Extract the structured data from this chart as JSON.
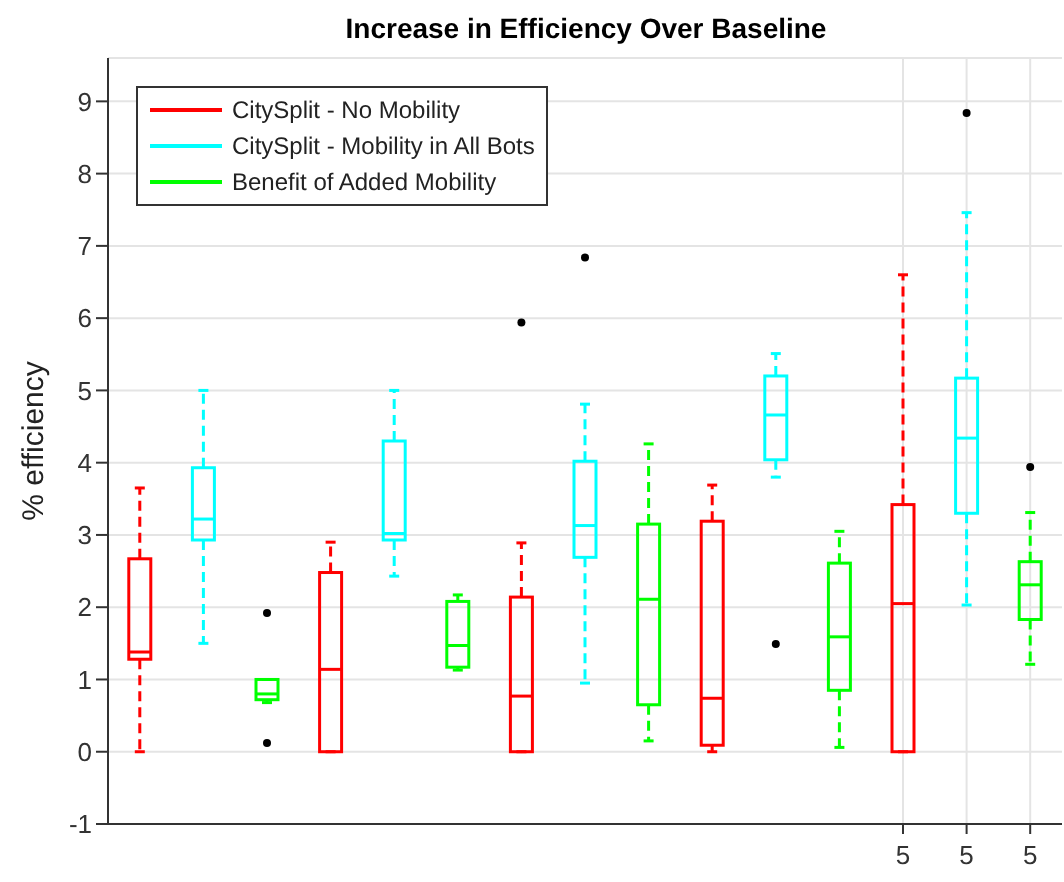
{
  "chart_data": {
    "type": "box",
    "title": "Increase in Efficiency Over Baseline",
    "ylabel": "% efficiency",
    "categories": [
      null,
      null,
      null,
      null,
      null,
      null,
      null,
      null,
      null,
      null,
      null,
      null,
      "5",
      "5",
      "5"
    ],
    "ylim": [
      -1,
      9.6
    ],
    "yticks": [
      -1,
      0,
      1,
      2,
      3,
      4,
      5,
      6,
      7,
      8,
      9
    ],
    "grid": true,
    "legend": "top left",
    "line_style": "dashed",
    "series": [
      {
        "name": "CitySplit - No Mobility",
        "color": "#ff0000",
        "boxes": [
          {
            "low": 0,
            "q1": 1.28,
            "median": 1.38,
            "q3": 2.67,
            "high": 3.65
          },
          null,
          null,
          {
            "low": 0,
            "q1": 0,
            "median": 1.14,
            "q3": 2.48,
            "high": 2.9
          },
          null,
          null,
          {
            "low": 0,
            "q1": 0,
            "median": 0.77,
            "q3": 2.14,
            "high": 2.89,
            "outliers": [
              5.94
            ]
          },
          null,
          null,
          {
            "low": 0,
            "q1": 0.09,
            "median": 0.74,
            "q3": 3.19,
            "high": 3.69
          },
          null,
          null,
          {
            "low": 0,
            "q1": 0,
            "median": 2.05,
            "q3": 3.42,
            "high": 6.6
          },
          null,
          null
        ]
      },
      {
        "name": "CitySplit - Mobility in All Bots",
        "color": "#00ffff",
        "boxes": [
          null,
          {
            "low": 1.5,
            "q1": 2.93,
            "median": 3.22,
            "q3": 3.93,
            "high": 5.0
          },
          null,
          null,
          {
            "low": 2.43,
            "q1": 2.93,
            "median": 3.02,
            "q3": 4.3,
            "high": 5.0
          },
          null,
          null,
          {
            "low": 0.95,
            "q1": 2.69,
            "median": 3.13,
            "q3": 4.02,
            "high": 4.81,
            "outliers": [
              6.84
            ]
          },
          null,
          null,
          {
            "low": 3.8,
            "q1": 4.04,
            "median": 4.66,
            "q3": 5.2,
            "high": 5.51,
            "outliers": [
              1.49
            ]
          },
          null,
          null,
          {
            "low": 2.03,
            "q1": 3.3,
            "median": 4.34,
            "q3": 5.17,
            "high": 7.46,
            "outliers": [
              8.84
            ]
          },
          null
        ]
      },
      {
        "name": "Benefit of Added Mobility",
        "color": "#00ff00",
        "boxes": [
          null,
          null,
          {
            "low": 0.68,
            "q1": 0.72,
            "median": 0.8,
            "q3": 1.0,
            "high": 1.0,
            "outliers": [
              1.92,
              0.12
            ]
          },
          null,
          null,
          {
            "low": 1.13,
            "q1": 1.17,
            "median": 1.47,
            "q3": 2.08,
            "high": 2.17
          },
          null,
          null,
          {
            "low": 0.15,
            "q1": 0.65,
            "median": 2.11,
            "q3": 3.15,
            "high": 4.26
          },
          null,
          null,
          {
            "low": 0.06,
            "q1": 0.85,
            "median": 1.59,
            "q3": 2.61,
            "high": 3.05
          },
          null,
          null,
          {
            "low": 1.21,
            "q1": 1.83,
            "median": 2.31,
            "q3": 2.63,
            "high": 3.31,
            "outliers": [
              3.94
            ]
          }
        ]
      }
    ]
  }
}
